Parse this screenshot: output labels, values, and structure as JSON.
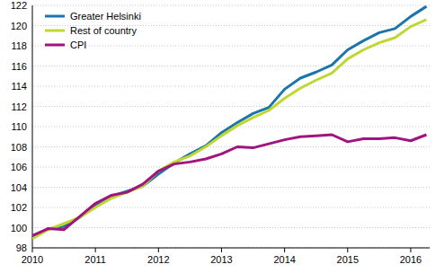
{
  "chart_data": {
    "type": "line",
    "x": [
      2010,
      2010.25,
      2010.5,
      2010.75,
      2011,
      2011.25,
      2011.5,
      2011.75,
      2012,
      2012.25,
      2012.5,
      2012.75,
      2013,
      2013.25,
      2013.5,
      2013.75,
      2014,
      2014.25,
      2014.5,
      2014.75,
      2015,
      2015.25,
      2015.5,
      2015.75,
      2016,
      2016.25
    ],
    "series": [
      {
        "name": "Greater Helsinki",
        "color": "#1b75aa",
        "values": [
          99.1,
          99.9,
          100.1,
          101.0,
          102.2,
          103.1,
          103.6,
          104.1,
          105.3,
          106.4,
          107.3,
          108.1,
          109.4,
          110.4,
          111.3,
          111.9,
          113.7,
          114.8,
          115.4,
          116.1,
          117.6,
          118.5,
          119.3,
          119.7,
          120.9,
          121.9
        ]
      },
      {
        "name": "Rest of country",
        "color": "#bfd730",
        "values": [
          98.9,
          99.8,
          100.4,
          101.0,
          102.0,
          102.9,
          103.5,
          104.1,
          105.6,
          106.5,
          107.1,
          108.0,
          109.1,
          110.1,
          110.9,
          111.6,
          112.8,
          113.8,
          114.6,
          115.3,
          116.7,
          117.6,
          118.3,
          118.8,
          119.9,
          120.6
        ]
      },
      {
        "name": "CPI",
        "color": "#a1147f",
        "values": [
          99.2,
          99.9,
          99.8,
          101.1,
          102.4,
          103.2,
          103.5,
          104.3,
          105.6,
          106.3,
          106.5,
          106.8,
          107.3,
          108.0,
          107.9,
          108.3,
          108.7,
          109.0,
          109.1,
          109.2,
          108.5,
          108.8,
          108.8,
          108.9,
          108.6,
          109.2
        ]
      }
    ],
    "xlim": [
      2010,
      2016.3
    ],
    "xticks": [
      2010,
      2011,
      2012,
      2013,
      2014,
      2015,
      2016
    ],
    "ylim": [
      98,
      122
    ],
    "yticks": [
      98,
      100,
      102,
      104,
      106,
      108,
      110,
      112,
      114,
      116,
      118,
      120,
      122
    ],
    "grid": true,
    "legend": "top-left"
  }
}
